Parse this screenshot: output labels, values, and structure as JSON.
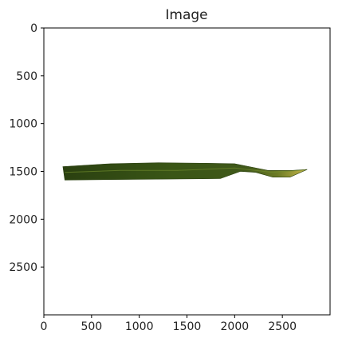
{
  "chart_data": {
    "type": "image",
    "title": "Image",
    "xlabel": "",
    "ylabel": "",
    "xlim": [
      0,
      3000
    ],
    "ylim": [
      3000,
      0
    ],
    "y_inverted": true,
    "grid": false,
    "x_ticks": [
      0,
      500,
      1000,
      1500,
      2000,
      2500
    ],
    "y_ticks": [
      0,
      500,
      1000,
      1500,
      2000,
      2500
    ],
    "image_content": {
      "subject": "single green grass leaf on white background",
      "leaf_outline_points": [
        [
          200,
          1450
        ],
        [
          700,
          1420
        ],
        [
          1200,
          1410
        ],
        [
          1700,
          1415
        ],
        [
          2000,
          1420
        ],
        [
          2150,
          1450
        ],
        [
          2350,
          1490
        ],
        [
          2600,
          1490
        ],
        [
          2760,
          1480
        ],
        [
          2580,
          1560
        ],
        [
          2400,
          1560
        ],
        [
          2220,
          1510
        ],
        [
          2060,
          1500
        ],
        [
          1850,
          1575
        ],
        [
          1300,
          1580
        ],
        [
          700,
          1585
        ],
        [
          220,
          1590
        ]
      ],
      "midrib_points": [
        [
          220,
          1510
        ],
        [
          800,
          1490
        ],
        [
          1400,
          1490
        ],
        [
          2000,
          1465
        ],
        [
          2400,
          1510
        ],
        [
          2740,
          1485
        ]
      ],
      "colors": {
        "leaf_main": "#3a5616",
        "leaf_dark": "#2a4010",
        "leaf_tip": "#8c9a2e",
        "leaf_tip_yellow": "#c8b84a",
        "midrib": "#6f8a2c"
      }
    }
  },
  "colors": {
    "axes": "#000000",
    "text": "#222222",
    "background": "#ffffff"
  }
}
